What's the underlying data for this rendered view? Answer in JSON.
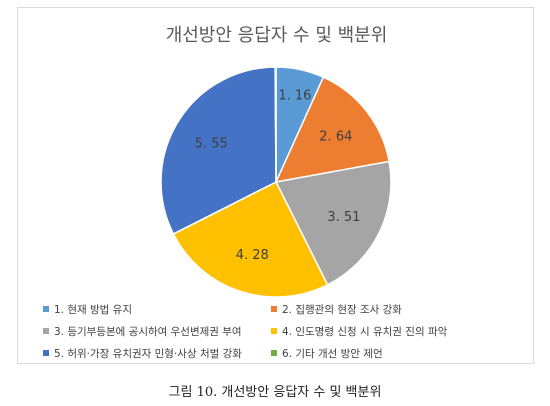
{
  "chart_data": {
    "type": "pie",
    "title": "개선방안 응답자 수 및 백분위",
    "categories": [
      "1. 현재 방법 유지",
      "2. 집행관의 현장 조사 강화",
      "3. 등기부등본에 공시하여 우선변제권 부여",
      "4. 인도명령 신청 시 유치권 진의 파악",
      "5. 허위·가장 유치권자 민형·사상 처벌 강화",
      "6. 기타 개선 방안 제언"
    ],
    "values": [
      1.16,
      2.64,
      3.51,
      4.28,
      5.55,
      0.02
    ],
    "data_labels": [
      "1. 16",
      "2. 64",
      "3. 51",
      "4. 28",
      "5. 55",
      ""
    ],
    "colors": [
      "#5b9bd5",
      "#ed7d31",
      "#a5a5a5",
      "#ffc000",
      "#4472c4",
      "#70ad47"
    ],
    "legend_position": "bottom",
    "start_angle_deg": 0,
    "direction": "clockwise"
  },
  "caption": "그림 10. 개선방안 응답자 수 및 백분위"
}
